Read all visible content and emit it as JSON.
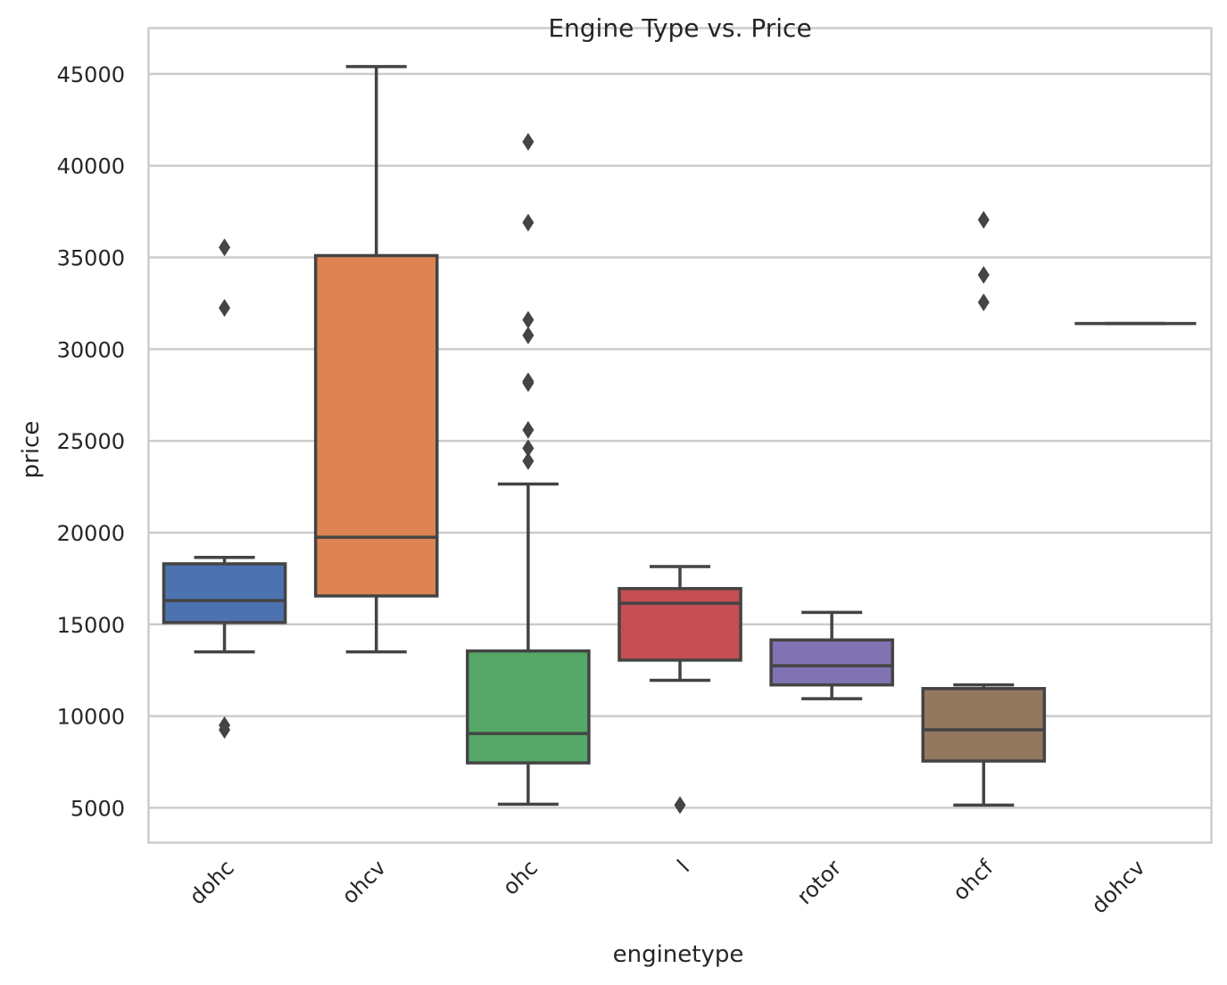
{
  "chart_data": {
    "type": "box",
    "title": "Engine Type vs. Price",
    "xlabel": "enginetype",
    "ylabel": "price",
    "ylim": [
      3100,
      47500
    ],
    "yticks": [
      5000,
      10000,
      15000,
      20000,
      25000,
      30000,
      35000,
      40000,
      45000
    ],
    "grid": true,
    "categories": [
      "dohc",
      "ohcv",
      "ohc",
      "l",
      "rotor",
      "ohcf",
      "dohcv"
    ],
    "boxes": [
      {
        "category": "dohc",
        "color": "#4c72b0",
        "whisker_low": 13500,
        "q1": 15100,
        "median": 16300,
        "q3": 18300,
        "whisker_high": 18650,
        "outliers": [
          35550,
          32250,
          9500,
          9250
        ]
      },
      {
        "category": "ohcv",
        "color": "#dd8452",
        "whisker_low": 13500,
        "q1": 16550,
        "median": 19750,
        "q3": 35100,
        "whisker_high": 45400,
        "outliers": []
      },
      {
        "category": "ohc",
        "color": "#55a868",
        "whisker_low": 5200,
        "q1": 7450,
        "median": 9050,
        "q3": 13550,
        "whisker_high": 22650,
        "outliers": [
          41300,
          36900,
          31600,
          30750,
          28250,
          28150,
          25600,
          24600,
          23900
        ]
      },
      {
        "category": "l",
        "color": "#c44e52",
        "whisker_low": 11950,
        "q1": 13050,
        "median": 16150,
        "q3": 16950,
        "whisker_high": 18150,
        "outliers": [
          5150
        ]
      },
      {
        "category": "rotor",
        "color": "#8172b3",
        "whisker_low": 10950,
        "q1": 11700,
        "median": 12750,
        "q3": 14150,
        "whisker_high": 15650,
        "outliers": []
      },
      {
        "category": "ohcf",
        "color": "#937860",
        "whisker_low": 5150,
        "q1": 7550,
        "median": 9250,
        "q3": 11500,
        "whisker_high": 11700,
        "outliers": [
          37050,
          34050,
          32550
        ]
      },
      {
        "category": "dohcv",
        "color": "#da8bc3",
        "whisker_low": 31400,
        "q1": 31400,
        "median": 31400,
        "q3": 31400,
        "whisker_high": 31400,
        "outliers": []
      }
    ]
  }
}
